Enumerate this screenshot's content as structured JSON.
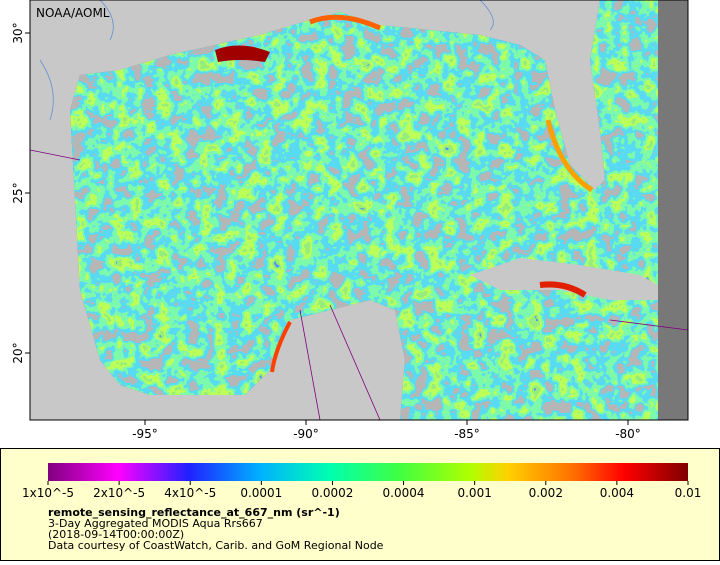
{
  "map": {
    "title": "NOAA/AOML",
    "lat_ticks": [
      {
        "value": 30,
        "label": "30°"
      },
      {
        "value": 25,
        "label": "25°"
      },
      {
        "value": 20,
        "label": "20°"
      }
    ],
    "lon_ticks": [
      {
        "value": -95,
        "label": "-95°"
      },
      {
        "value": -90,
        "label": "-90°"
      },
      {
        "value": -85,
        "label": "-85°"
      },
      {
        "value": -80,
        "label": "-80°"
      }
    ],
    "colorbar": {
      "labels": [
        "1x10^-5",
        "2x10^-5",
        "4x10^-5",
        "0.0001",
        "0.0002",
        "0.0004",
        "0.001",
        "0.002",
        "0.004",
        "0.01"
      ],
      "variable": "remote_sensing_reflectance_at_667_nm (sr^-1)",
      "description": "3-Day Aggregated MODIS Aqua Rrs667",
      "date": "(2018-09-14T00:00:00Z)",
      "credit": "Data courtesy of CoastWatch, Carib. and GoM Regional Node"
    }
  }
}
